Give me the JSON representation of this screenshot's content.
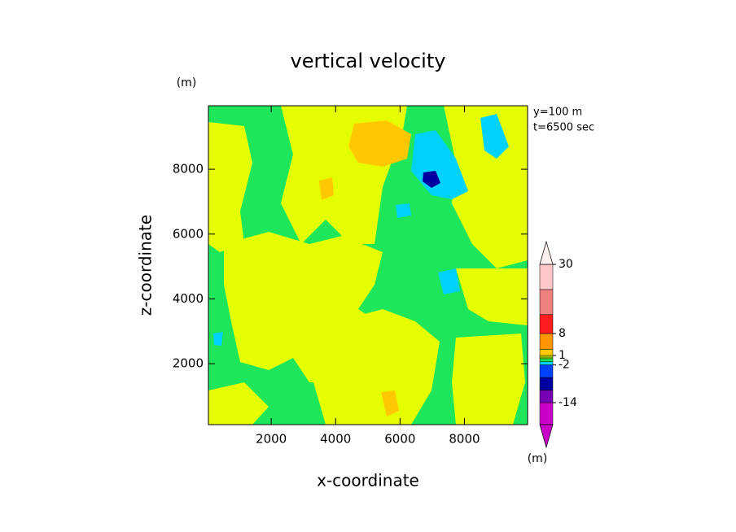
{
  "chart_data": {
    "type": "contour",
    "title": "vertical velocity",
    "x_label": "x-coordinate",
    "y_label": "z-coordinate",
    "x_unit": "(m)",
    "y_unit": "(m)",
    "annotations": [
      "y=100 m",
      "t=6500 sec"
    ],
    "xlim": [
      50,
      9960
    ],
    "ylim": [
      120,
      9960
    ],
    "xticks": [
      2000,
      4000,
      6000,
      8000
    ],
    "yticks": [
      2000,
      4000,
      6000,
      8000
    ],
    "colorbar": {
      "unit": "(m)",
      "clim": [
        -21,
        30
      ],
      "levels": [
        -21,
        -14,
        -10,
        -6,
        -2,
        -1,
        0,
        0.5,
        1,
        3,
        8,
        14,
        22,
        30
      ],
      "colors": [
        "#c800c8",
        "#7800b4",
        "#0000a0",
        "#0040ff",
        "#00d2ff",
        "#1ee65a",
        "#a0f000",
        "#e6ff00",
        "#ffc800",
        "#ff9600",
        "#ff1e1e",
        "#f08080",
        "#ffc8c8"
      ],
      "under_color": "#c800c8",
      "over_color": "#fff0f0",
      "ticks": [
        30,
        8,
        1,
        -2,
        -14
      ]
    }
  }
}
